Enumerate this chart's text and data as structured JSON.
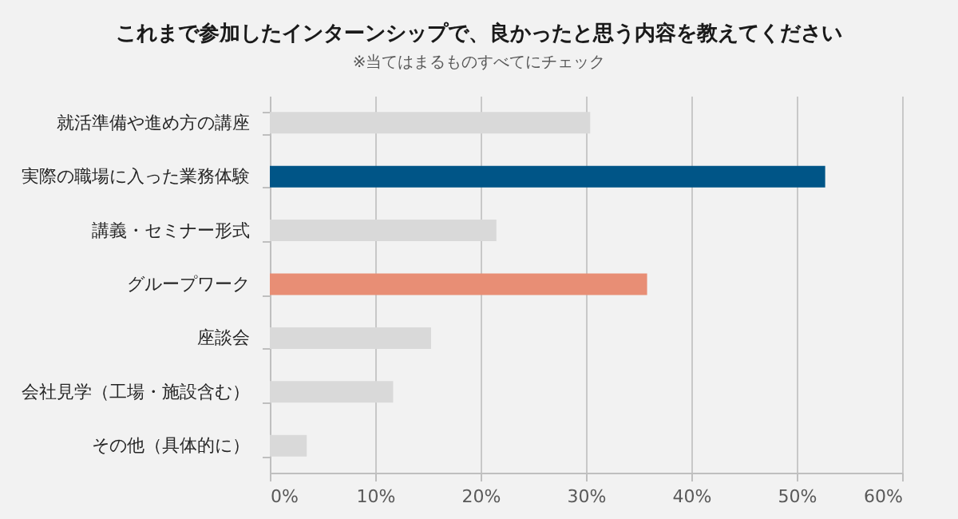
{
  "chart_data": {
    "type": "bar",
    "orientation": "horizontal",
    "title": "これまで参加したインターンシップで、良かったと思う内容を教えてください",
    "subtitle": "※当てはまるものすべてにチェック",
    "categories": [
      "就活準備や進め方の講座",
      "実際の職場に入った業務体験",
      "講義・セミナー形式",
      "グループワーク",
      "座談会",
      "会社見学（工場・施設含む）",
      "その他（具体的に）"
    ],
    "values": [
      30.4,
      52.7,
      21.5,
      35.8,
      15.3,
      11.7,
      3.5
    ],
    "colors": [
      "#d9d9d9",
      "#005587",
      "#d9d9d9",
      "#e88e75",
      "#d9d9d9",
      "#d9d9d9",
      "#d9d9d9"
    ],
    "xlim": [
      0,
      60
    ],
    "xticks": [
      {
        "value": 0,
        "label": "0%"
      },
      {
        "value": 10,
        "label": "10%"
      },
      {
        "value": 20,
        "label": "20%"
      },
      {
        "value": 30,
        "label": "30%"
      },
      {
        "value": 40,
        "label": "40%"
      },
      {
        "value": 50,
        "label": "50%"
      },
      {
        "value": 60,
        "label": "60%"
      }
    ],
    "grid": "x"
  }
}
